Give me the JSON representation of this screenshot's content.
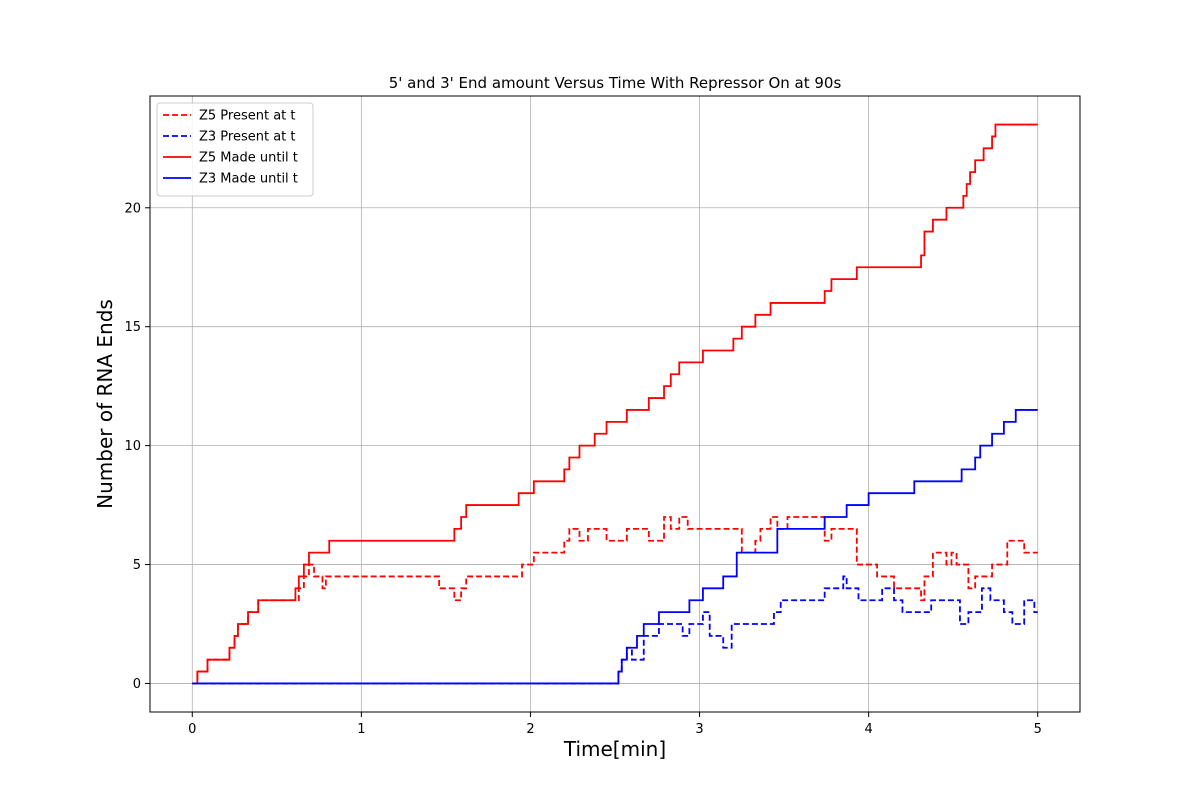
{
  "chart_data": {
    "type": "line",
    "title": "5' and 3' End amount Versus Time With Repressor On at 90s",
    "xlabel": "Time[min]",
    "ylabel": "Number of RNA Ends",
    "xlim": [
      -0.25,
      5.25
    ],
    "ylim": [
      -1.2,
      24.7
    ],
    "xticks": [
      0,
      1,
      2,
      3,
      4,
      5
    ],
    "yticks": [
      0,
      5,
      10,
      15,
      20
    ],
    "grid": true,
    "legend_position": "top-left",
    "series": [
      {
        "name": "Z5 Present at t",
        "color": "#ff0000",
        "dashed": true,
        "x": [
          0,
          0.03,
          0.09,
          0.22,
          0.25,
          0.27,
          0.33,
          0.39,
          0.61,
          0.63,
          0.66,
          0.69,
          0.72,
          0.77,
          0.79,
          1.42,
          1.46,
          1.55,
          1.59,
          1.62,
          1.93,
          1.95,
          2.02,
          2.2,
          2.23,
          2.29,
          2.34,
          2.45,
          2.57,
          2.7,
          2.79,
          2.83,
          2.88,
          2.93,
          3.2,
          3.25,
          3.33,
          3.36,
          3.42,
          3.46,
          3.52,
          3.74,
          3.78,
          3.93,
          3.97,
          4.05,
          4.15,
          4.31,
          4.33,
          4.38,
          4.46,
          4.49,
          4.52,
          4.59,
          4.63,
          4.68,
          4.73,
          4.82,
          4.92,
          5.0
        ],
        "values": [
          0,
          0.5,
          1,
          1.5,
          2,
          2.5,
          3,
          3.5,
          3.5,
          4,
          4.5,
          5,
          4.5,
          4,
          4.5,
          4.5,
          4,
          3.5,
          4,
          4.5,
          4.5,
          5,
          5.5,
          6,
          6.5,
          6,
          6.5,
          6,
          6.5,
          6,
          7,
          6.5,
          7,
          6.5,
          6.5,
          5.5,
          6,
          6.5,
          7,
          6.5,
          7,
          6,
          6.5,
          5,
          5,
          4.5,
          4,
          3.5,
          4.5,
          5.5,
          5,
          5.5,
          5,
          4,
          4.5,
          4.5,
          5,
          6,
          5.5,
          5.5
        ]
      },
      {
        "name": "Z3 Present at t",
        "color": "#0000ff",
        "dashed": true,
        "x": [
          0,
          2.52,
          2.54,
          2.57,
          2.6,
          2.67,
          2.76,
          2.9,
          2.94,
          3.02,
          3.06,
          3.14,
          3.19,
          3.22,
          3.44,
          3.48,
          3.74,
          3.85,
          3.87,
          3.94,
          4.08,
          4.15,
          4.2,
          4.37,
          4.54,
          4.59,
          4.67,
          4.72,
          4.8,
          4.85,
          4.92,
          4.98,
          5.0
        ],
        "values": [
          0,
          0.5,
          1,
          1.5,
          1,
          2,
          2.5,
          2,
          2.5,
          3,
          2,
          1.5,
          2.5,
          2.5,
          3,
          3.5,
          4,
          4.5,
          4,
          3.5,
          4,
          3.5,
          3,
          3.5,
          2.5,
          3,
          4,
          3.5,
          3,
          2.5,
          3.5,
          3,
          3
        ]
      },
      {
        "name": "Z5 Made until t",
        "color": "#ff0000",
        "dashed": false,
        "x": [
          0,
          0.03,
          0.09,
          0.22,
          0.25,
          0.27,
          0.33,
          0.39,
          0.61,
          0.63,
          0.66,
          0.69,
          0.81,
          1.55,
          1.59,
          1.62,
          1.93,
          2.02,
          2.2,
          2.23,
          2.29,
          2.38,
          2.45,
          2.57,
          2.7,
          2.79,
          2.83,
          2.88,
          3.02,
          3.2,
          3.25,
          3.33,
          3.36,
          3.42,
          3.52,
          3.74,
          3.78,
          3.93,
          4.31,
          4.33,
          4.38,
          4.46,
          4.52,
          4.56,
          4.58,
          4.6,
          4.63,
          4.68,
          4.73,
          4.75,
          5.0
        ],
        "values": [
          0,
          0.5,
          1,
          1.5,
          2,
          2.5,
          3,
          3.5,
          4,
          4.5,
          5,
          5.5,
          6,
          6.5,
          7,
          7.5,
          8,
          8.5,
          9,
          9.5,
          10,
          10.5,
          11,
          11.5,
          12,
          12.5,
          13,
          13.5,
          14,
          14.5,
          15,
          15.5,
          15.5,
          16,
          16,
          16.5,
          17,
          17.5,
          18,
          19,
          19.5,
          20,
          20,
          20.5,
          21,
          21.5,
          22,
          22.5,
          23,
          23.5,
          23.5
        ]
      },
      {
        "name": "Z3 Made until t",
        "color": "#0000ff",
        "dashed": false,
        "x": [
          0,
          2.52,
          2.54,
          2.57,
          2.63,
          2.67,
          2.76,
          2.94,
          3.02,
          3.14,
          3.22,
          3.46,
          3.74,
          3.87,
          4.0,
          4.27,
          4.55,
          4.63,
          4.66,
          4.73,
          4.8,
          4.87,
          4.93,
          5.0
        ],
        "values": [
          0,
          0.5,
          1,
          1.5,
          2,
          2.5,
          3,
          3.5,
          4,
          4.5,
          5.5,
          6.5,
          7,
          7.5,
          8,
          8.5,
          9,
          9.5,
          10,
          10.5,
          11,
          11.5,
          11.5,
          11.5
        ]
      }
    ]
  }
}
